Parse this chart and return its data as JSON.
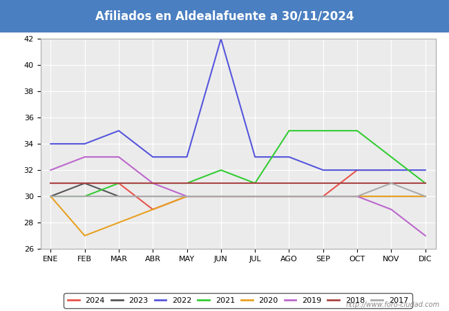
{
  "title": "Afiliados en Aldealafuente a 30/11/2024",
  "title_bg_color": "#4a7fc1",
  "title_text_color": "#ffffff",
  "ylim": [
    26,
    42
  ],
  "yticks": [
    26,
    28,
    30,
    32,
    34,
    36,
    38,
    40,
    42
  ],
  "months": [
    "ENE",
    "FEB",
    "MAR",
    "ABR",
    "MAY",
    "JUN",
    "JUL",
    "AGO",
    "SEP",
    "OCT",
    "NOV",
    "DIC"
  ],
  "watermark": "http://www.foro-ciudad.com",
  "series": [
    {
      "year": "2024",
      "color": "#e8534a",
      "data": [
        31,
        31,
        31,
        29,
        30,
        30,
        30,
        30,
        30,
        32,
        32,
        null
      ]
    },
    {
      "year": "2023",
      "color": "#555555",
      "data": [
        30,
        31,
        30,
        30,
        30,
        30,
        30,
        30,
        30,
        30,
        30,
        30
      ]
    },
    {
      "year": "2022",
      "color": "#5555dd",
      "data": [
        34,
        34,
        35,
        33,
        33,
        42,
        33,
        33,
        32,
        32,
        32,
        32
      ]
    },
    {
      "year": "2021",
      "color": "#33cc33",
      "data": [
        30,
        30,
        31,
        31,
        31,
        32,
        31,
        35,
        35,
        35,
        33,
        31
      ]
    },
    {
      "year": "2020",
      "color": "#e8a020",
      "data": [
        30,
        27,
        28,
        29,
        30,
        30,
        30,
        30,
        30,
        30,
        30,
        30
      ]
    },
    {
      "year": "2019",
      "color": "#bb66cc",
      "data": [
        32,
        33,
        33,
        31,
        30,
        30,
        30,
        30,
        30,
        30,
        29,
        27
      ]
    },
    {
      "year": "2018",
      "color": "#aa4444",
      "data": [
        31,
        31,
        31,
        31,
        31,
        31,
        31,
        31,
        31,
        31,
        31,
        31
      ]
    },
    {
      "year": "2017",
      "color": "#aaaaaa",
      "data": [
        30,
        30,
        30,
        30,
        30,
        30,
        30,
        30,
        30,
        30,
        31,
        30
      ]
    }
  ]
}
